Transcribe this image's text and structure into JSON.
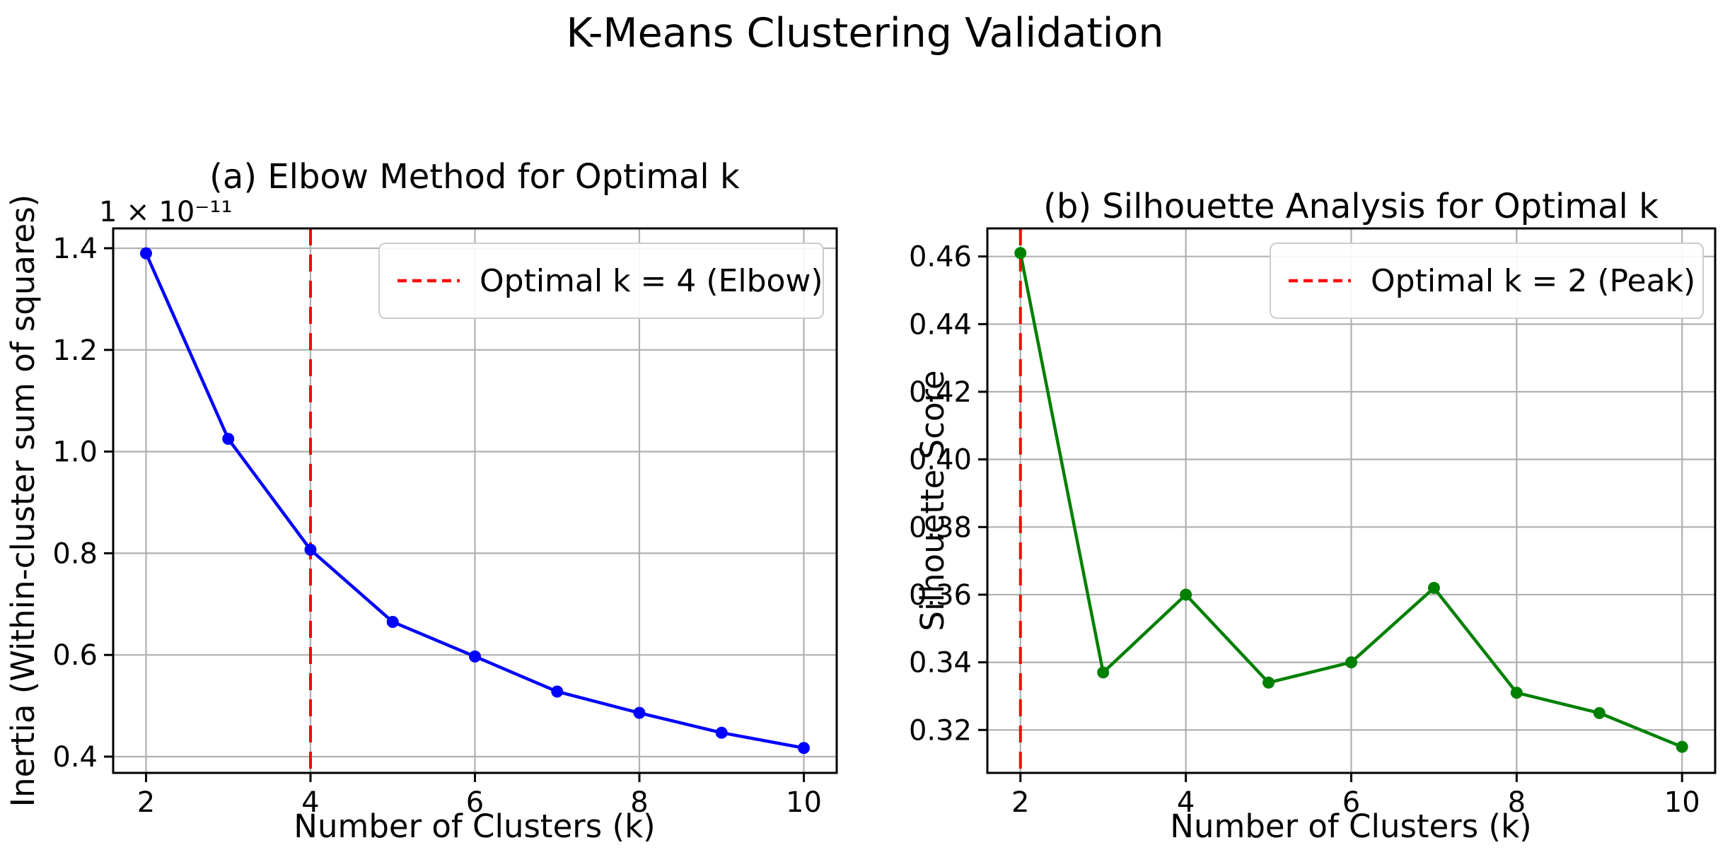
{
  "figure": {
    "title": "K-Means Clustering Validation",
    "background_color": "#ffffff",
    "grid_color": "#b0b0b0",
    "spine_color": "#000000"
  },
  "chart_data": [
    {
      "type": "line",
      "title": "(a) Elbow Method for Optimal k",
      "xlabel": "Number of Clusters (k)",
      "ylabel": "Inertia (Within-cluster sum of squares)",
      "offset_text": "1 × 10⁻¹¹",
      "x": [
        2,
        3,
        4,
        5,
        6,
        7,
        8,
        9,
        10
      ],
      "y": [
        1.39,
        1.025,
        0.807,
        0.665,
        0.597,
        0.528,
        0.486,
        0.447,
        0.417
      ],
      "line_color": "#0000ff",
      "marker": "o",
      "grid": true,
      "xlim": [
        1.6,
        10.4
      ],
      "ylim": [
        0.368,
        1.439
      ],
      "xticks": [
        2,
        4,
        6,
        8,
        10
      ],
      "xtick_labels": [
        "2",
        "4",
        "6",
        "8",
        "10"
      ],
      "yticks": [
        0.4,
        0.6,
        0.8,
        1.0,
        1.2,
        1.4
      ],
      "ytick_labels": [
        "0.4",
        "0.6",
        "0.8",
        "1.0",
        "1.2",
        "1.4"
      ],
      "vline": {
        "x": 4,
        "color": "#ff0000",
        "style": "dashed"
      },
      "legend": {
        "label": "Optimal k = 4 (Elbow)",
        "position": "upper right",
        "sample_color": "#ff0000"
      }
    },
    {
      "type": "line",
      "title": "(b) Silhouette Analysis for Optimal k",
      "xlabel": "Number of Clusters (k)",
      "ylabel": "Silhouette Score",
      "offset_text": "",
      "x": [
        2,
        3,
        4,
        5,
        6,
        7,
        8,
        9,
        10
      ],
      "y": [
        0.461,
        0.337,
        0.36,
        0.334,
        0.34,
        0.362,
        0.331,
        0.325,
        0.315
      ],
      "line_color": "#008000",
      "marker": "o",
      "grid": true,
      "xlim": [
        1.6,
        10.4
      ],
      "ylim": [
        0.3073,
        0.4683
      ],
      "xticks": [
        2,
        4,
        6,
        8,
        10
      ],
      "xtick_labels": [
        "2",
        "4",
        "6",
        "8",
        "10"
      ],
      "yticks": [
        0.32,
        0.34,
        0.36,
        0.38,
        0.4,
        0.42,
        0.44,
        0.46
      ],
      "ytick_labels": [
        "0.32",
        "0.34",
        "0.36",
        "0.38",
        "0.40",
        "0.42",
        "0.44",
        "0.46"
      ],
      "vline": {
        "x": 2,
        "color": "#ff0000",
        "style": "dashed"
      },
      "legend": {
        "label": "Optimal k = 2 (Peak)",
        "position": "upper right",
        "sample_color": "#ff0000"
      }
    }
  ]
}
